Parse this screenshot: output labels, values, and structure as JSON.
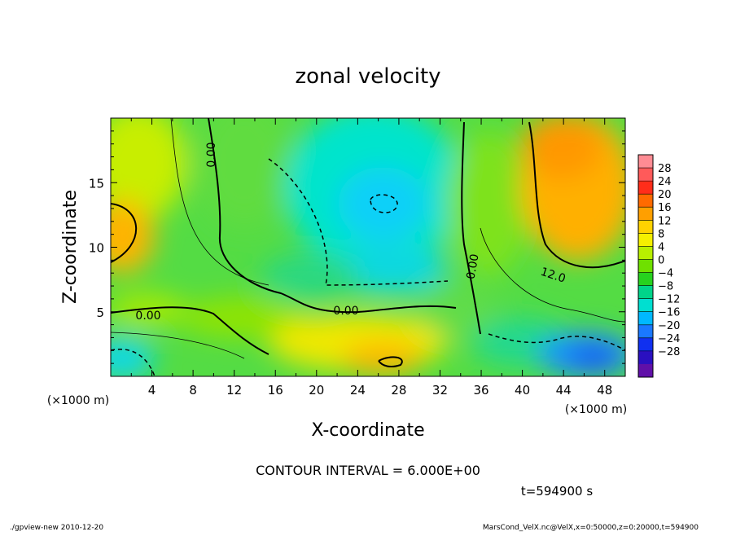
{
  "chart_data": {
    "type": "heatmap",
    "title": "zonal velocity",
    "xlabel": "X-coordinate",
    "ylabel": "Z-coordinate",
    "x_unit": "(×1000 m)",
    "x_unit_right": "(×1000 m)",
    "xlim": [
      0,
      50
    ],
    "ylim": [
      0,
      20
    ],
    "x_ticks": [
      4,
      8,
      12,
      16,
      20,
      24,
      28,
      32,
      36,
      40,
      44,
      48
    ],
    "y_ticks": [
      5,
      10,
      15
    ],
    "colorbar": {
      "labels": [
        "28",
        "24",
        "20",
        "16",
        "12",
        "8",
        "4",
        "0",
        "−4",
        "−8",
        "−12",
        "−16",
        "−20",
        "−24",
        "−28"
      ],
      "colors": [
        "#ff8c94",
        "#ff5a5a",
        "#ff2d1a",
        "#ff6a00",
        "#ff9f00",
        "#ffd200",
        "#f5f000",
        "#b8ef00",
        "#6fe000",
        "#27d21e",
        "#00d48a",
        "#00dfd0",
        "#00b8ff",
        "#1a78ff",
        "#1030f0",
        "#2a10c0",
        "#6010a8"
      ]
    },
    "contour_labels": [
      {
        "text": "0.00",
        "x": 10.1,
        "z": 17.1
      },
      {
        "text": "0.00",
        "x": 3.5,
        "z": 4.7
      },
      {
        "text": "0.00",
        "x": 23.0,
        "z": 5.1
      },
      {
        "text": "0.00",
        "x": 35.2,
        "z": 8.5
      },
      {
        "text": "12.0",
        "x": 42.4,
        "z": 8.1
      }
    ],
    "contour_interval_text": "CONTOUR INTERVAL = 6.000E+00"
  },
  "annotations": {
    "time": "t=594900 s",
    "footer_left": "./gpview-new  2010-12-20",
    "footer_right": "MarsCond_VelX.nc@VelX,x=0:50000,z=0:20000,t=594900"
  }
}
